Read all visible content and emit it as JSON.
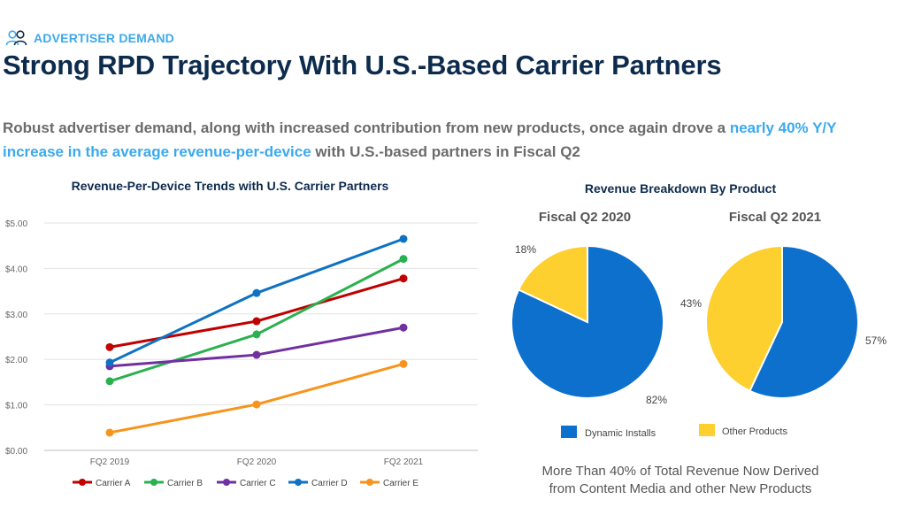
{
  "header": {
    "section_label": "ADVERTISER DEMAND",
    "title": "Strong RPD Trajectory With U.S.-Based Carrier Partners",
    "subtitle": {
      "part1": "Robust advertiser demand, along with increased contribution from new products, once again drove a ",
      "highlight": "nearly 40% Y/Y increase in the average revenue-per-device",
      "part2": " with U.S.-based partners in Fiscal Q2"
    }
  },
  "colors": {
    "accent": "#3ba9ee",
    "title": "#0d2b4d",
    "text_gray": "#6b6b6b"
  },
  "chart_data": [
    {
      "type": "line",
      "title": "Revenue-Per-Device Trends with U.S. Carrier Partners",
      "categories": [
        "FQ2 2019",
        "FQ2 2020",
        "FQ2 2021"
      ],
      "ylim": [
        0,
        5
      ],
      "yticks": [
        "$0.00",
        "$1.00",
        "$2.00",
        "$3.00",
        "$4.00",
        "$5.00"
      ],
      "grid": true,
      "legend_position": "bottom",
      "series": [
        {
          "name": "Carrier A",
          "color": "#c00000",
          "values": [
            2.27,
            2.84,
            3.78
          ]
        },
        {
          "name": "Carrier B",
          "color": "#2ab14f",
          "values": [
            1.52,
            2.55,
            4.21
          ]
        },
        {
          "name": "Carrier C",
          "color": "#7030a0",
          "values": [
            1.85,
            2.1,
            2.7
          ]
        },
        {
          "name": "Carrier D",
          "color": "#0e72c4",
          "values": [
            1.93,
            3.46,
            4.65
          ]
        },
        {
          "name": "Carrier E",
          "color": "#f7941d",
          "values": [
            0.39,
            1.01,
            1.9
          ]
        }
      ]
    },
    {
      "type": "pie",
      "group_title": "Revenue Breakdown By Product",
      "title": "Fiscal Q2 2020",
      "slices": [
        {
          "label": "Dynamic Installs",
          "value": 82,
          "display": "82%",
          "color": "#0c70cc"
        },
        {
          "label": "Other Products",
          "value": 18,
          "display": "18%",
          "color": "#fdcf2f"
        }
      ]
    },
    {
      "type": "pie",
      "title": "Fiscal Q2 2021",
      "slices": [
        {
          "label": "Dynamic Installs",
          "value": 57,
          "display": "57%",
          "color": "#0c70cc"
        },
        {
          "label": "Other Products",
          "value": 43,
          "display": "43%",
          "color": "#fdcf2f"
        }
      ]
    }
  ],
  "pie_legend": [
    {
      "label": "Dynamic Installs",
      "color": "#0c70cc"
    },
    {
      "label": "Other Products",
      "color": "#fdcf2f"
    }
  ],
  "footnote": {
    "line1": "More Than 40% of Total Revenue Now Derived",
    "line2": "from Content Media and other New Products"
  }
}
